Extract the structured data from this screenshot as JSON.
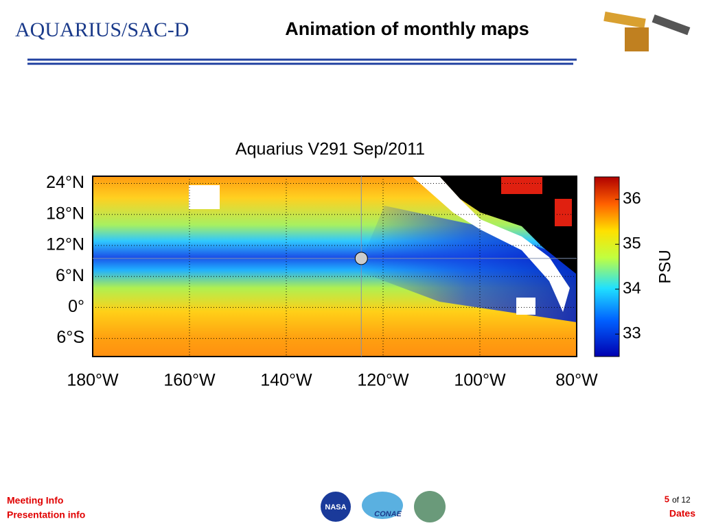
{
  "header": {
    "logo": "AQUARIUS/SAC-D",
    "title": "Animation of monthly maps"
  },
  "map": {
    "title": "Aquarius V291   Sep/2011",
    "xlim": [
      -180,
      -80
    ],
    "ylim": [
      -9.5,
      25.4
    ],
    "xticks": [
      {
        "value": -180,
        "label": "180°W"
      },
      {
        "value": -160,
        "label": "160°W"
      },
      {
        "value": -140,
        "label": "140°W"
      },
      {
        "value": -120,
        "label": "120°W"
      },
      {
        "value": -100,
        "label": "100°W"
      },
      {
        "value": -80,
        "label": "80°W"
      }
    ],
    "yticks": [
      {
        "value": 24,
        "label": "24°N"
      },
      {
        "value": 18,
        "label": "18°N"
      },
      {
        "value": 12,
        "label": "12°N"
      },
      {
        "value": 6,
        "label": "6°N"
      },
      {
        "value": 0,
        "label": "0°"
      },
      {
        "value": -6,
        "label": "6°S"
      }
    ],
    "marker": {
      "x": -124.5,
      "y": 9.5
    }
  },
  "colorbar": {
    "label": "PSU",
    "range": [
      32.5,
      36.5
    ],
    "ticks": [
      33,
      34,
      35,
      36
    ]
  },
  "footer": {
    "left": [
      "Meeting Info",
      "Presentation info"
    ],
    "page": "5",
    "of": "of 12",
    "dates": "Dates",
    "logos": [
      "NASA",
      "CONAE"
    ]
  }
}
